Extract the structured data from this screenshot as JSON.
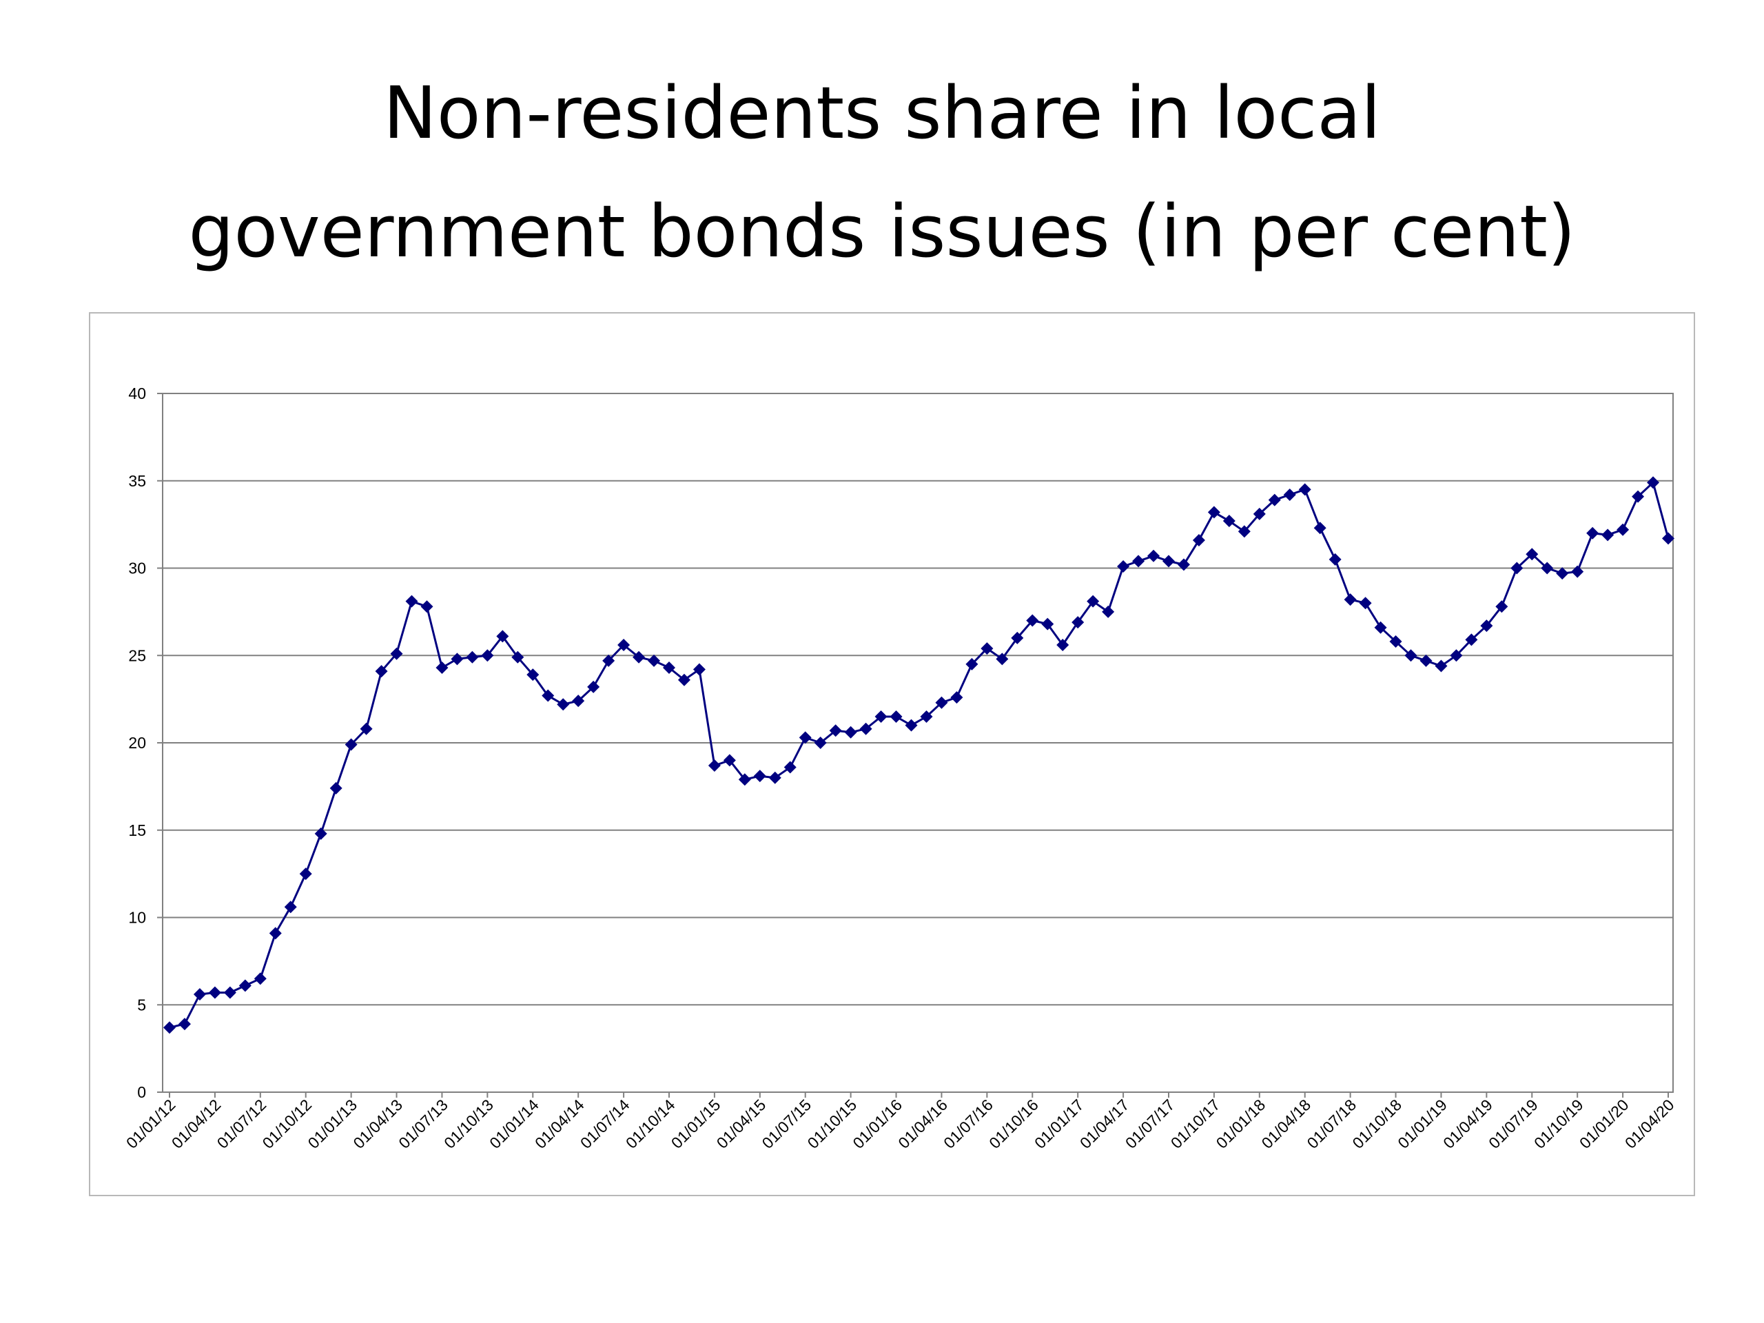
{
  "slide": {
    "title_line1": "Non-residents share in local",
    "title_line2": "government bonds issues (in per cent)"
  },
  "chart_data": {
    "type": "line",
    "title": "Non-residents share in local government bonds issues (in per cent)",
    "xlabel": "",
    "ylabel": "",
    "ylim": [
      0,
      40
    ],
    "yticks": [
      0,
      5,
      10,
      15,
      20,
      25,
      30,
      35,
      40
    ],
    "grid": true,
    "legend": "none",
    "colors": {
      "line": "#000080",
      "marker": "#000080",
      "grid": "#808080",
      "axis": "#808080"
    },
    "marker": "diamond",
    "x_tick_labels": [
      "01/01/12",
      "01/04/12",
      "01/07/12",
      "01/10/12",
      "01/01/13",
      "01/04/13",
      "01/07/13",
      "01/10/13",
      "01/01/14",
      "01/04/14",
      "01/07/14",
      "01/10/14",
      "01/01/15",
      "01/04/15",
      "01/07/15",
      "01/10/15",
      "01/01/16",
      "01/04/16",
      "01/07/16",
      "01/10/16",
      "01/01/17",
      "01/04/17",
      "01/07/17",
      "01/10/17",
      "01/01/18",
      "01/04/18",
      "01/07/18",
      "01/10/18",
      "01/01/19",
      "01/04/19",
      "01/07/19",
      "01/10/19",
      "01/01/20",
      "01/04/20"
    ],
    "series": [
      {
        "values": [
          3.7,
          3.9,
          5.6,
          5.7,
          5.7,
          6.1,
          6.5,
          9.1,
          10.6,
          12.5,
          14.8,
          17.4,
          19.9,
          20.8,
          24.1,
          25.1,
          28.1,
          27.8,
          24.3,
          24.8,
          24.9,
          25.0,
          26.1,
          24.9,
          23.9,
          22.7,
          22.2,
          22.4,
          23.2,
          24.7,
          25.6,
          24.9,
          24.7,
          24.3,
          23.6,
          24.2,
          18.7,
          19.0,
          17.9,
          18.1,
          18.0,
          18.6,
          20.3,
          20.0,
          20.7,
          20.6,
          20.8,
          21.5,
          21.5,
          21.0,
          21.5,
          22.3,
          22.6,
          24.5,
          25.4,
          24.8,
          26.0,
          27.0,
          26.8,
          25.6,
          26.9,
          28.1,
          27.5,
          30.1,
          30.4,
          30.7,
          30.4,
          30.2,
          31.6,
          33.2,
          32.7,
          32.1,
          33.1,
          33.9,
          34.2,
          34.5,
          32.3,
          30.5,
          28.2,
          28.0,
          26.6,
          25.8,
          25.0,
          24.7,
          24.4,
          25.0,
          25.9,
          26.7,
          27.8,
          30.0,
          30.8,
          30.0,
          29.7,
          29.8,
          32.0,
          31.9,
          32.2,
          34.1,
          34.9,
          31.7
        ]
      }
    ]
  }
}
